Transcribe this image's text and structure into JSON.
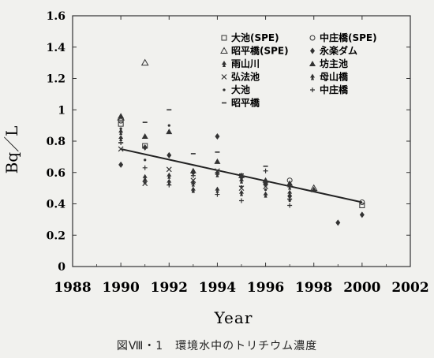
{
  "chart_data": {
    "type": "scatter",
    "title": "",
    "xlabel": "Year",
    "ylabel": "Bq／L",
    "xlim": [
      1988,
      2002
    ],
    "ylim": [
      0,
      1.6
    ],
    "xticks": [
      "1988",
      "1990",
      "1992",
      "1994",
      "1996",
      "1998",
      "2000",
      "2002"
    ],
    "yticks": [
      "0",
      "0.2",
      "0.4",
      "0.6",
      "0.8",
      "1",
      "1.2",
      "1.4",
      "1.6"
    ],
    "legend_position": "top-right",
    "series": [
      {
        "name": "大池(SPE)",
        "marker": "square-open",
        "points": [
          [
            1990,
            0.91
          ],
          [
            1991,
            0.77
          ],
          [
            2000,
            0.39
          ]
        ]
      },
      {
        "name": "中庄橋(SPE)",
        "marker": "circle-open",
        "points": [
          [
            1990,
            0.93
          ],
          [
            1997,
            0.55
          ],
          [
            2000,
            0.41
          ]
        ]
      },
      {
        "name": "昭平橋(SPE)",
        "marker": "triangle-open",
        "points": [
          [
            1990,
            0.95
          ],
          [
            1991,
            1.3
          ],
          [
            1998,
            0.5
          ]
        ]
      },
      {
        "name": "永楽ダム",
        "marker": "diamond",
        "points": [
          [
            1990,
            0.65
          ],
          [
            1991,
            0.76
          ],
          [
            1992,
            0.71
          ],
          [
            1993,
            0.6
          ],
          [
            1994,
            0.83
          ],
          [
            1995,
            0.57
          ],
          [
            1996,
            0.53
          ],
          [
            1997,
            0.45
          ],
          [
            1999,
            0.28
          ],
          [
            2000,
            0.33
          ]
        ]
      },
      {
        "name": "雨山川",
        "marker": "spade",
        "points": [
          [
            1990,
            0.86
          ],
          [
            1991,
            0.57
          ],
          [
            1992,
            0.54
          ],
          [
            1993,
            0.53
          ],
          [
            1994,
            0.49
          ],
          [
            1995,
            0.47
          ],
          [
            1996,
            0.46
          ],
          [
            1997,
            0.47
          ]
        ]
      },
      {
        "name": "坊主池",
        "marker": "triangle",
        "points": [
          [
            1990,
            0.96
          ],
          [
            1991,
            0.83
          ],
          [
            1992,
            0.86
          ],
          [
            1993,
            0.61
          ],
          [
            1994,
            0.67
          ],
          [
            1995,
            0.58
          ],
          [
            1996,
            0.55
          ],
          [
            1997,
            0.53
          ],
          [
            1998,
            0.49
          ]
        ]
      },
      {
        "name": "弘法池",
        "marker": "x",
        "points": [
          [
            1990,
            0.75
          ],
          [
            1991,
            0.53
          ],
          [
            1992,
            0.62
          ],
          [
            1993,
            0.55
          ],
          [
            1994,
            0.61
          ],
          [
            1995,
            0.5
          ],
          [
            1996,
            0.51
          ]
        ]
      },
      {
        "name": "母山橋",
        "marker": "spade",
        "points": [
          [
            1990,
            0.82
          ],
          [
            1991,
            0.55
          ],
          [
            1992,
            0.58
          ],
          [
            1993,
            0.49
          ],
          [
            1994,
            0.59
          ],
          [
            1995,
            0.55
          ],
          [
            1996,
            0.53
          ],
          [
            1997,
            0.51
          ]
        ]
      },
      {
        "name": "大池",
        "marker": "dot",
        "points": [
          [
            1990,
            0.88
          ],
          [
            1991,
            0.68
          ],
          [
            1992,
            0.9
          ],
          [
            1993,
            0.48
          ],
          [
            1994,
            0.6
          ],
          [
            1995,
            0.51
          ],
          [
            1996,
            0.49
          ],
          [
            1997,
            0.42
          ]
        ]
      },
      {
        "name": "中庄橋",
        "marker": "plus",
        "points": [
          [
            1990,
            0.79
          ],
          [
            1991,
            0.63
          ],
          [
            1992,
            0.52
          ],
          [
            1993,
            0.58
          ],
          [
            1994,
            0.46
          ],
          [
            1995,
            0.42
          ],
          [
            1996,
            0.61
          ],
          [
            1997,
            0.39
          ]
        ]
      },
      {
        "name": "昭平橋",
        "marker": "dash",
        "points": [
          [
            1990,
            0.79
          ],
          [
            1991,
            0.92
          ],
          [
            1992,
            1.0
          ],
          [
            1993,
            0.72
          ],
          [
            1994,
            0.73
          ],
          [
            1995,
            0.59
          ],
          [
            1996,
            0.64
          ],
          [
            1997,
            0.43
          ]
        ]
      }
    ],
    "trendline": {
      "type": "linear",
      "points": [
        [
          1990,
          0.75
        ],
        [
          2000,
          0.41
        ]
      ]
    }
  },
  "caption": "図Ⅷ・1　環境水中のトリチウム濃度"
}
